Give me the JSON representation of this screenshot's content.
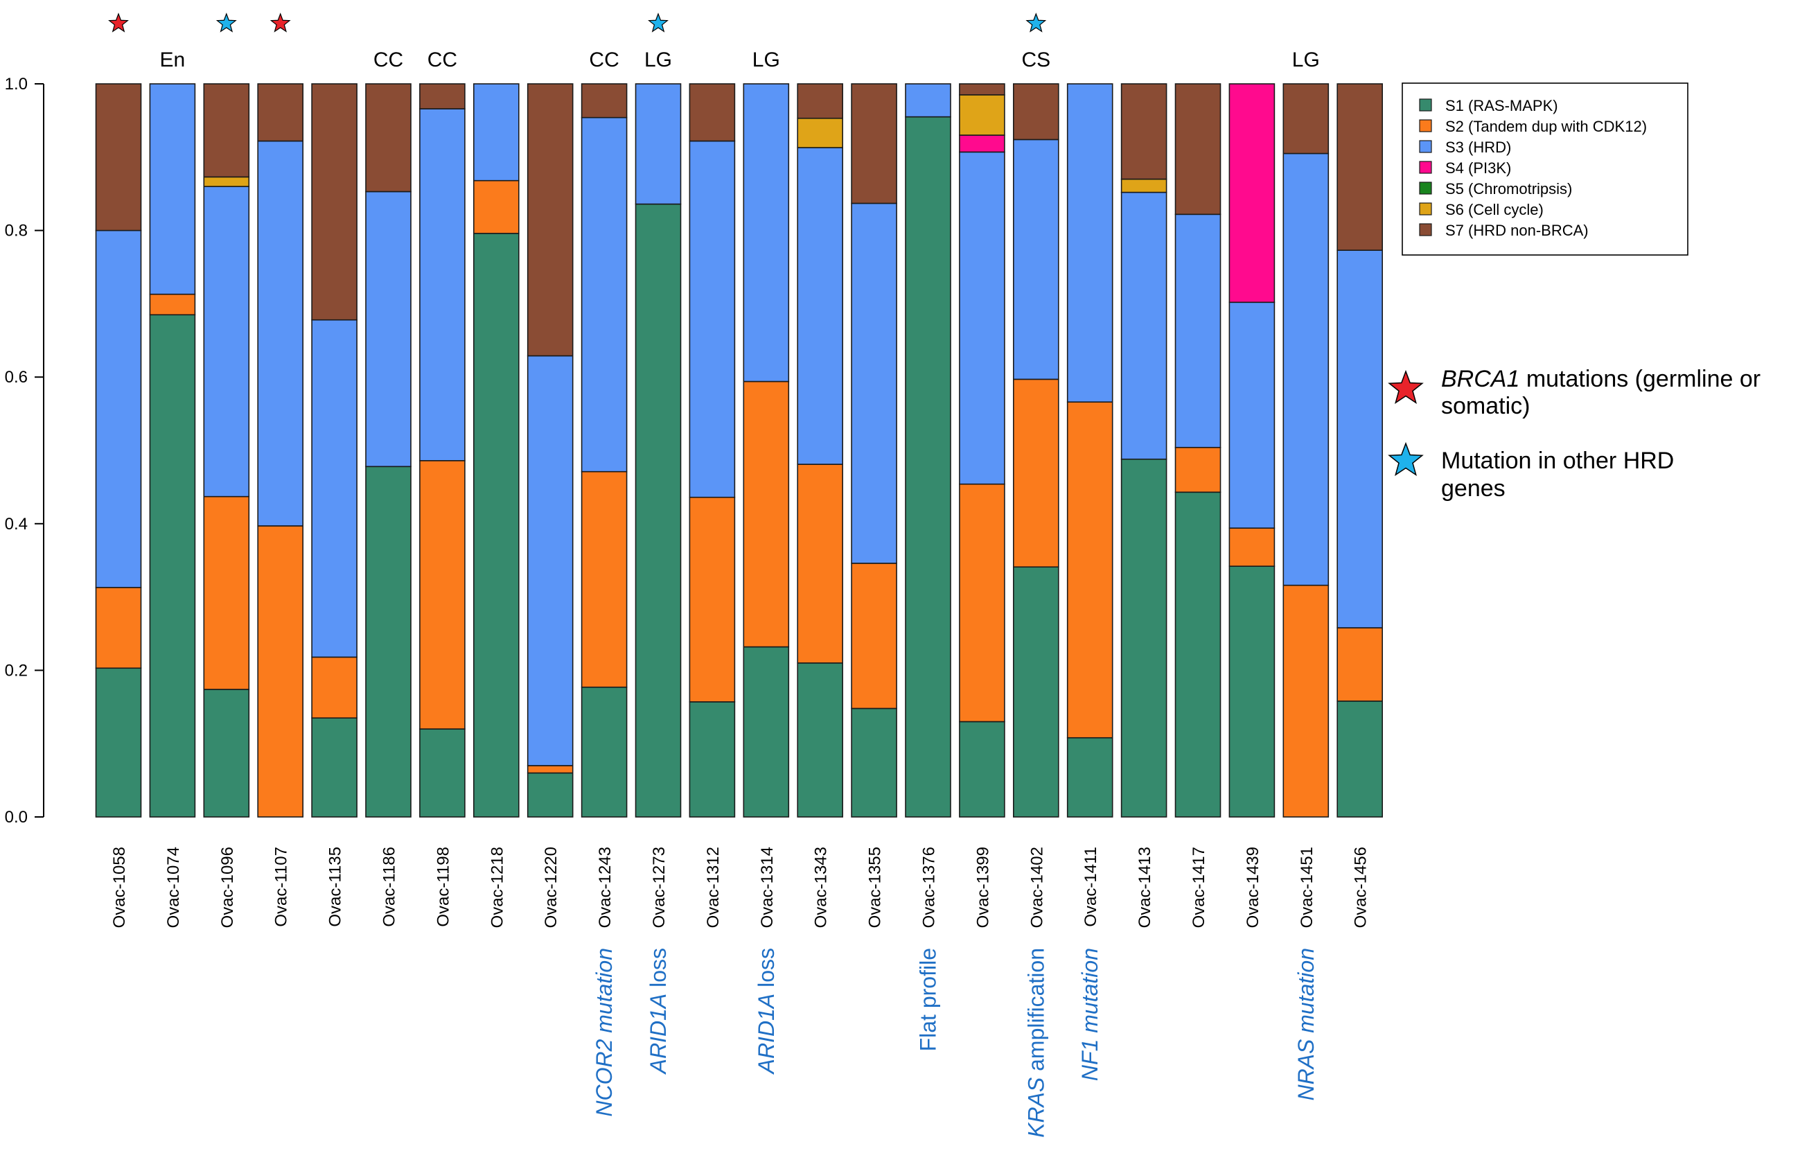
{
  "chart_data": {
    "type": "bar",
    "stacked": true,
    "title": "",
    "xlabel": "",
    "ylabel": "",
    "ylim": [
      0,
      1
    ],
    "yticks": [
      "0.0",
      "0.2",
      "0.4",
      "0.6",
      "0.8",
      "1.0"
    ],
    "categories": [
      "Ovac-1058",
      "Ovac-1074",
      "Ovac-1096",
      "Ovac-1107",
      "Ovac-1135",
      "Ovac-1186",
      "Ovac-1198",
      "Ovac-1218",
      "Ovac-1220",
      "Ovac-1243",
      "Ovac-1273",
      "Ovac-1312",
      "Ovac-1314",
      "Ovac-1343",
      "Ovac-1355",
      "Ovac-1376",
      "Ovac-1399",
      "Ovac-1402",
      "Ovac-1411",
      "Ovac-1413",
      "Ovac-1417",
      "Ovac-1439",
      "Ovac-1451",
      "Ovac-1456"
    ],
    "series": [
      {
        "name": "S1 (RAS-MAPK)",
        "color": "#368a6d",
        "values": [
          0.203,
          0.685,
          0.174,
          0.0,
          0.135,
          0.478,
          0.12,
          0.796,
          0.06,
          0.177,
          0.836,
          0.157,
          0.232,
          0.21,
          0.148,
          0.955,
          0.13,
          0.341,
          0.108,
          0.488,
          0.443,
          0.342,
          0.0,
          0.158
        ]
      },
      {
        "name": "S2 (Tandem dup with CDK12)",
        "color": "#fb7b1c",
        "values": [
          0.11,
          0.028,
          0.263,
          0.397,
          0.083,
          0.0,
          0.366,
          0.072,
          0.01,
          0.294,
          0.0,
          0.279,
          0.362,
          0.271,
          0.198,
          0.0,
          0.324,
          0.256,
          0.458,
          0.0,
          0.061,
          0.052,
          0.316,
          0.1
        ]
      },
      {
        "name": "S3 (HRD)",
        "color": "#5b95f7",
        "values": [
          0.487,
          0.287,
          0.423,
          0.525,
          0.46,
          0.375,
          0.48,
          0.132,
          0.559,
          0.483,
          0.164,
          0.486,
          0.406,
          0.432,
          0.491,
          0.045,
          0.453,
          0.327,
          0.434,
          0.364,
          0.318,
          0.308,
          0.589,
          0.515
        ]
      },
      {
        "name": "S4 (PI3K)",
        "color": "#ff0a8e",
        "values": [
          0,
          0,
          0,
          0,
          0,
          0,
          0,
          0,
          0,
          0,
          0,
          0,
          0,
          0,
          0,
          0,
          0.023,
          0,
          0,
          0,
          0,
          0.298,
          0,
          0
        ]
      },
      {
        "name": "S5 (Chromotripsis)",
        "color": "#19841e",
        "values": [
          0,
          0,
          0,
          0,
          0,
          0,
          0,
          0,
          0,
          0,
          0,
          0,
          0,
          0,
          0,
          0,
          0,
          0,
          0,
          0,
          0,
          0,
          0,
          0
        ]
      },
      {
        "name": "S6 (Cell cycle)",
        "color": "#dfa418",
        "values": [
          0,
          0,
          0.013,
          0,
          0,
          0,
          0,
          0,
          0,
          0,
          0,
          0,
          0,
          0.04,
          0,
          0,
          0.055,
          0,
          0,
          0.018,
          0,
          0,
          0,
          0
        ]
      },
      {
        "name": "S7 (HRD non-BRCA)",
        "color": "#8a4c34",
        "values": [
          0.2,
          0.0,
          0.127,
          0.078,
          0.322,
          0.147,
          0.034,
          0.0,
          0.371,
          0.046,
          0.0,
          0.078,
          0.0,
          0.047,
          0.163,
          0.0,
          0.015,
          0.076,
          0.0,
          0.13,
          0.178,
          0.0,
          0.095,
          0.227
        ]
      }
    ],
    "subtype_labels": [
      {
        "sample": "Ovac-1074",
        "text": "En"
      },
      {
        "sample": "Ovac-1186",
        "text": "CC"
      },
      {
        "sample": "Ovac-1198",
        "text": "CC"
      },
      {
        "sample": "Ovac-1243",
        "text": "CC"
      },
      {
        "sample": "Ovac-1273",
        "text": "LG"
      },
      {
        "sample": "Ovac-1314",
        "text": "LG"
      },
      {
        "sample": "Ovac-1402",
        "text": "CS"
      },
      {
        "sample": "Ovac-1451",
        "text": "LG"
      }
    ],
    "star_markers": [
      {
        "sample": "Ovac-1058",
        "type": "BRCA1"
      },
      {
        "sample": "Ovac-1096",
        "type": "HRD"
      },
      {
        "sample": "Ovac-1107",
        "type": "BRCA1"
      },
      {
        "sample": "Ovac-1273",
        "type": "HRD"
      },
      {
        "sample": "Ovac-1402",
        "type": "HRD"
      }
    ],
    "annotations": [
      {
        "sample": "Ovac-1243",
        "italic": "NCOR2 mutation",
        "plain": ""
      },
      {
        "sample": "Ovac-1273",
        "italic": "ARID1A",
        "plain": " loss"
      },
      {
        "sample": "Ovac-1314",
        "italic": "ARID1A",
        "plain": " loss"
      },
      {
        "sample": "Ovac-1376",
        "italic": "",
        "plain": "Flat profile"
      },
      {
        "sample": "Ovac-1402",
        "italic": "KRAS",
        "plain": " amplification"
      },
      {
        "sample": "Ovac-1411",
        "italic": "NF1 mutation",
        "plain": ""
      },
      {
        "sample": "Ovac-1451",
        "italic": "NRAS mutation",
        "plain": ""
      }
    ],
    "legend_position": "top-right",
    "star_key": {
      "brca1": {
        "italic": "BRCA1",
        "line1": " mutations (germline or",
        "line2": "somatic)",
        "color": "#e8232a"
      },
      "hrd": {
        "line1": "Mutation in other HRD",
        "line2": "genes",
        "color": "#1fb2ec"
      }
    }
  }
}
